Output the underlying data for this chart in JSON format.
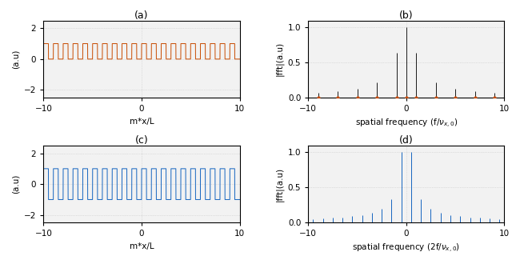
{
  "color_a": "#C84B00",
  "color_b_line": "#1a1a1a",
  "color_b_dot": "#C84B00",
  "color_cd": "#1565C0",
  "title_a": "(a)",
  "title_b": "(b)",
  "title_c": "(c)",
  "title_d": "(d)",
  "xlabel_ac": "m*x/L",
  "ylabel_ac": "(a.u)",
  "ylabel_bd": "|fft|(a.u)",
  "xlim_ac": [
    -10,
    10
  ],
  "ylim_ac": [
    -2.5,
    2.5
  ],
  "xlim_bd": [
    -10,
    10
  ],
  "ylim_bd": [
    0,
    1.09
  ],
  "yticks_ac": [
    -2,
    0,
    2
  ],
  "yticks_bd": [
    0,
    0.5,
    1
  ],
  "xticks_ac": [
    -10,
    0,
    10
  ],
  "xticks_bd": [
    -10,
    0,
    10
  ],
  "num_periods": 20,
  "duty_cycle": 0.5,
  "grid_color": "#c8c8c8",
  "grid_alpha": 1.0,
  "background": "#f2f2f2",
  "N": 8000
}
